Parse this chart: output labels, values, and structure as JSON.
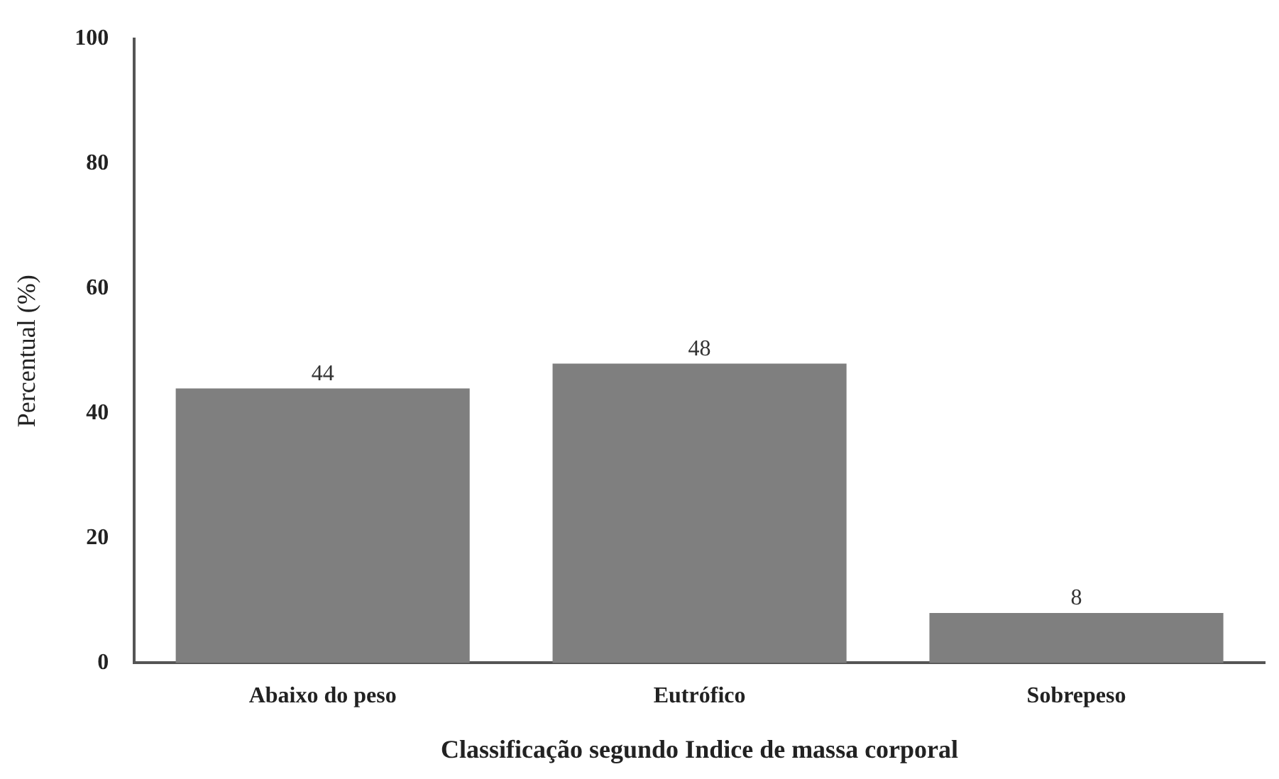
{
  "chart_data": {
    "type": "bar",
    "xlabel": "Classificação segundo Indice de massa corporal",
    "ylabel": "Percentual (%)",
    "categories": [
      "Abaixo do peso",
      "Eutrófico",
      "Sobrepeso"
    ],
    "values": [
      44,
      48,
      8
    ],
    "color": "#7f7f7f",
    "ylim": [
      0,
      100
    ],
    "yticks": [
      0,
      20,
      40,
      60,
      80,
      100
    ],
    "grid": false,
    "legend": false,
    "data_labels": true
  }
}
